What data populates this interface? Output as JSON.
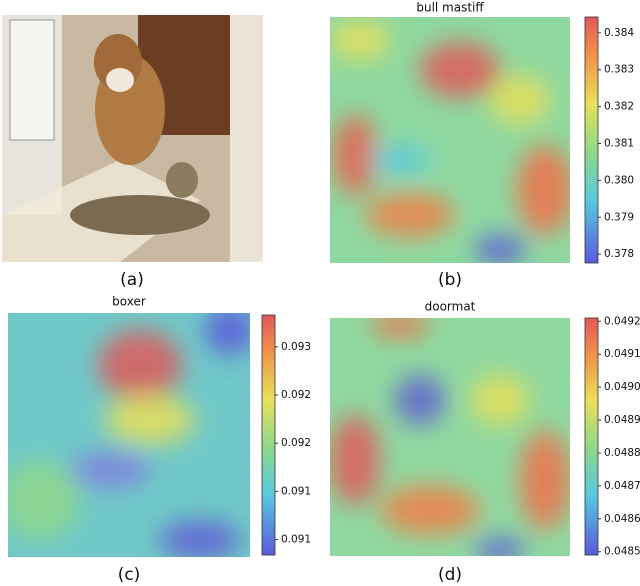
{
  "figure": {
    "panels": [
      {
        "caption": "(a)"
      },
      {
        "caption": "(b)",
        "title": "bull mastiff",
        "colorbar": {
          "lim": [
            0.37776,
            0.38443
          ],
          "ticks": [
            0.378,
            0.379,
            {
              "value": 0.38,
              "label": "0.380"
            },
            0.381,
            0.382,
            0.383,
            0.384
          ]
        }
      },
      {
        "caption": "(c)",
        "title": "boxer",
        "colorbar": {
          "lim": [
            0.09084,
            0.09333
          ],
          "ticks": [
            {
              "value": 0.091,
              "label": "0.091"
            },
            {
              "value": 0.0915,
              "label": "0.091"
            },
            {
              "value": 0.092,
              "label": "0.092"
            },
            {
              "value": 0.0925,
              "label": "0.092"
            },
            {
              "value": 0.093,
              "label": "0.093"
            }
          ]
        }
      },
      {
        "caption": "(d)",
        "title": "doormat",
        "colorbar": {
          "lim": [
            0.04849,
            0.04921
          ],
          "ticks": [
            0.0485,
            0.0486,
            0.0487,
            0.0488,
            0.0489,
            {
              "value": 0.049,
              "label": "0.0490"
            },
            0.0491,
            0.0492
          ]
        }
      }
    ]
  }
}
